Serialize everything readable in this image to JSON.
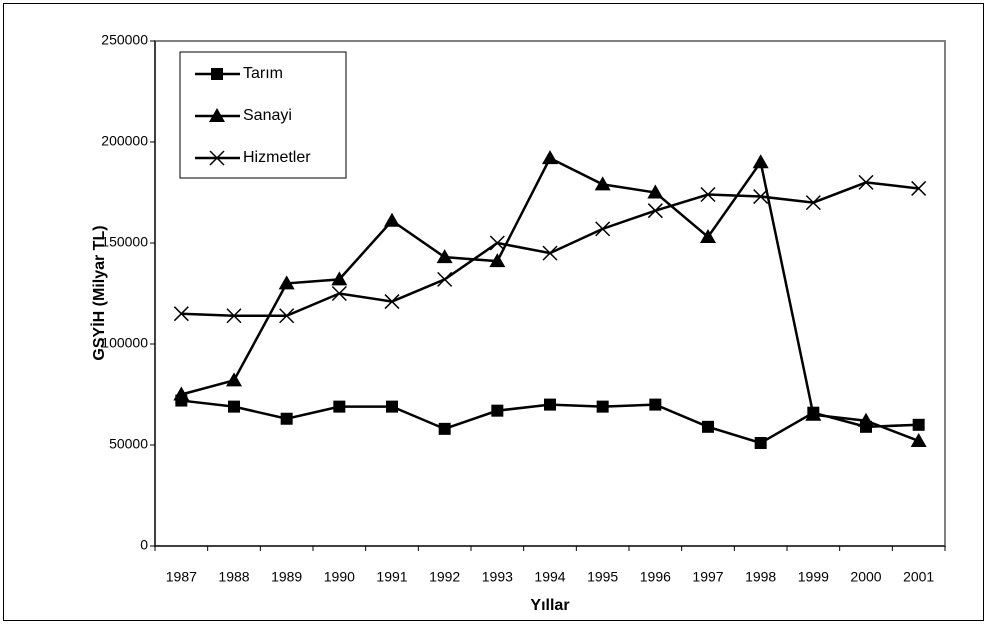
{
  "chart_data": {
    "type": "line",
    "x_label": "Yıllar",
    "y_label": "GSYİH (Milyar TL)",
    "categories": [
      "1987",
      "1988",
      "1989",
      "1990",
      "1991",
      "1992",
      "1993",
      "1994",
      "1995",
      "1996",
      "1997",
      "1998",
      "1999",
      "2000",
      "2001"
    ],
    "series": [
      {
        "name": "Tarım",
        "color": "#000000",
        "marker": "square",
        "values": [
          72000,
          69000,
          63000,
          69000,
          69000,
          58000,
          67000,
          70000,
          69000,
          70000,
          59000,
          51000,
          66000,
          59000,
          60000
        ]
      },
      {
        "name": "Sanayi",
        "color": "#000000",
        "marker": "triangle",
        "values": [
          75000,
          82000,
          130000,
          132000,
          161000,
          143000,
          141000,
          192000,
          179000,
          175000,
          153000,
          190000,
          65000,
          62000,
          52000
        ]
      },
      {
        "name": "Hizmetler",
        "color": "#000000",
        "marker": "x",
        "values": [
          115000,
          114000,
          114000,
          125000,
          121000,
          132000,
          150000,
          145000,
          157000,
          166000,
          174000,
          173000,
          170000,
          180000,
          177000
        ]
      }
    ],
    "ylim": [
      0,
      250000
    ],
    "yticks": [
      0,
      50000,
      100000,
      150000,
      200000,
      250000
    ],
    "grid": false,
    "legend": "upper left"
  }
}
